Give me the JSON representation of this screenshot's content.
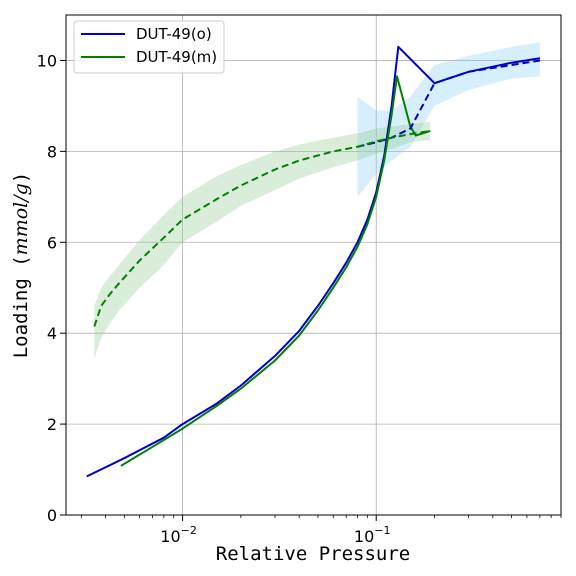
{
  "colors": {
    "series_o": "#0000cc",
    "series_m": "#008000",
    "band_o": "#87cefa",
    "band_m": "#8fc98f"
  },
  "chart_data": {
    "type": "line",
    "title": "",
    "xlabel": "Relative Pressure",
    "ylabel": "Loading (mmol/g)",
    "xscale": "log",
    "xlim": [
      0.0025,
      0.9
    ],
    "ylim": [
      0,
      11
    ],
    "grid": true,
    "legend_position": "top-left",
    "x_ticks": [
      {
        "value": 0.01,
        "label": "10",
        "exp": "−2"
      },
      {
        "value": 0.1,
        "label": "10",
        "exp": "−1"
      }
    ],
    "y_ticks": [
      {
        "value": 0,
        "label": "0"
      },
      {
        "value": 2,
        "label": "2"
      },
      {
        "value": 4,
        "label": "4"
      },
      {
        "value": 6,
        "label": "6"
      },
      {
        "value": 8,
        "label": "8"
      },
      {
        "value": 10,
        "label": "10"
      }
    ],
    "series": [
      {
        "name": "DUT-49(o)",
        "color": "#0000cc",
        "style": "solid",
        "x": [
          0.0032,
          0.005,
          0.008,
          0.01,
          0.015,
          0.02,
          0.03,
          0.04,
          0.05,
          0.06,
          0.07,
          0.08,
          0.09,
          0.1,
          0.11,
          0.12,
          0.13,
          0.2,
          0.3,
          0.5,
          0.7
        ],
        "y": [
          0.85,
          1.25,
          1.7,
          2.0,
          2.45,
          2.85,
          3.5,
          4.05,
          4.6,
          5.1,
          5.55,
          6.0,
          6.5,
          7.1,
          7.9,
          9.0,
          10.3,
          9.5,
          9.75,
          9.95,
          10.05
        ]
      },
      {
        "name": "DUT-49(m)",
        "color": "#008000",
        "style": "solid",
        "x": [
          0.0048,
          0.007,
          0.01,
          0.015,
          0.02,
          0.03,
          0.04,
          0.05,
          0.06,
          0.07,
          0.08,
          0.09,
          0.1,
          0.11,
          0.12,
          0.128,
          0.15,
          0.16,
          0.19
        ],
        "y": [
          1.08,
          1.5,
          1.9,
          2.4,
          2.78,
          3.4,
          3.95,
          4.5,
          5.0,
          5.45,
          5.9,
          6.4,
          7.0,
          7.8,
          8.8,
          9.65,
          8.55,
          8.35,
          8.45
        ]
      },
      {
        "color": "#0000cc",
        "style": "dashed",
        "x": [
          0.08,
          0.1,
          0.12,
          0.15,
          0.2,
          0.3,
          0.5,
          0.7
        ],
        "y": [
          8.1,
          8.2,
          8.3,
          8.5,
          9.5,
          9.75,
          9.9,
          10.0
        ],
        "band_lower": [
          7.0,
          7.5,
          7.8,
          8.1,
          9.0,
          9.35,
          9.6,
          9.65
        ],
        "band_upper": [
          9.2,
          8.9,
          8.9,
          9.2,
          9.9,
          10.1,
          10.3,
          10.4
        ]
      },
      {
        "color": "#008000",
        "style": "dashed",
        "x": [
          0.0035,
          0.0038,
          0.0042,
          0.0047,
          0.006,
          0.008,
          0.01,
          0.015,
          0.02,
          0.03,
          0.04,
          0.06,
          0.08,
          0.1,
          0.12,
          0.15,
          0.19
        ],
        "y": [
          4.15,
          4.6,
          4.85,
          5.1,
          5.6,
          6.1,
          6.5,
          6.95,
          7.25,
          7.6,
          7.8,
          8.0,
          8.1,
          8.22,
          8.3,
          8.38,
          8.45
        ],
        "band_lower": [
          3.45,
          3.9,
          4.2,
          4.5,
          5.0,
          5.5,
          6.0,
          6.45,
          6.8,
          7.15,
          7.4,
          7.65,
          7.8,
          7.95,
          8.05,
          8.2,
          8.25
        ],
        "band_upper": [
          4.6,
          5.0,
          5.25,
          5.5,
          6.05,
          6.6,
          7.0,
          7.45,
          7.7,
          8.0,
          8.15,
          8.3,
          8.4,
          8.5,
          8.55,
          8.6,
          8.65
        ]
      }
    ]
  }
}
